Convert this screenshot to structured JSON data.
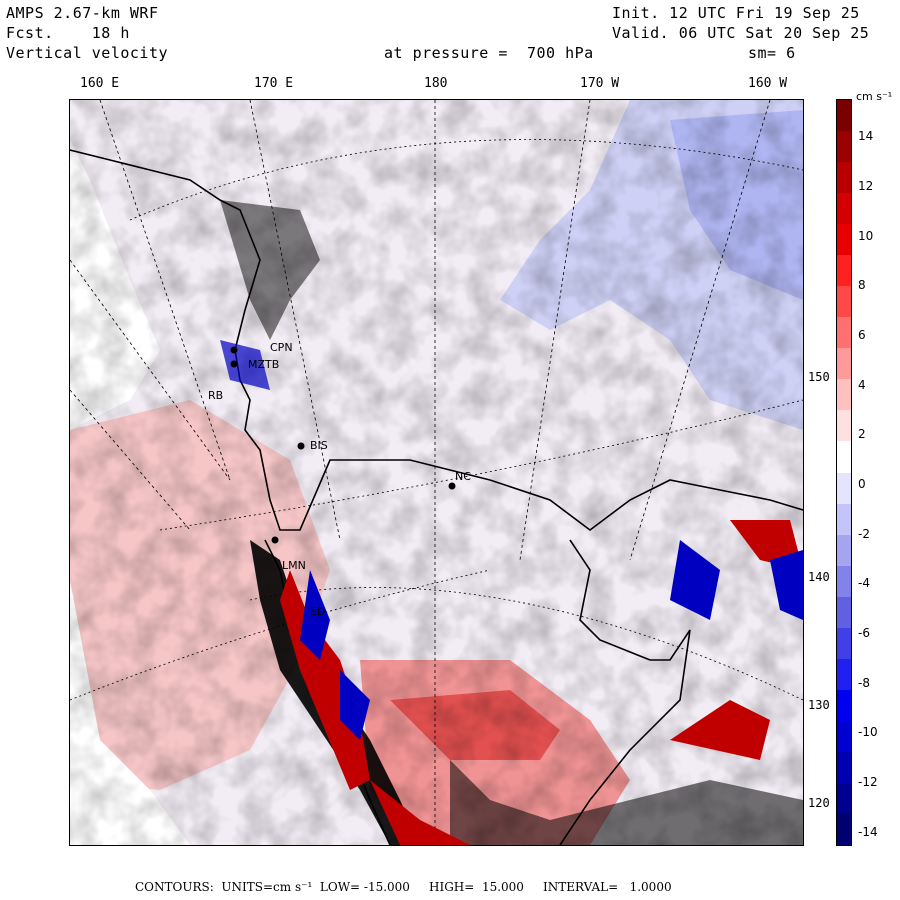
{
  "header": {
    "model": "AMPS 2.67-km WRF",
    "forecast": "Fcst.    18 h",
    "field": "Vertical velocity",
    "init": "Init. 12 UTC Fri 19 Sep 25",
    "valid": "Valid. 06 UTC Sat 20 Sep 25",
    "level": "at pressure =  700 hPa",
    "smoothing": "sm= 6"
  },
  "lon_labels": [
    "160 E",
    "170 E",
    "180",
    "170 W",
    "160 W"
  ],
  "lat_labels": [
    "150 W",
    "140 W",
    "130 W",
    "120 W"
  ],
  "colorbar": {
    "unit": "cm s⁻¹",
    "ticks": [
      "14",
      "12",
      "10",
      "8",
      "6",
      "4",
      "2",
      "0",
      "-2",
      "-4",
      "-6",
      "-8",
      "-10",
      "-12",
      "-14"
    ],
    "colors": [
      "#7a0000",
      "#9a0000",
      "#b80000",
      "#d40000",
      "#e80000",
      "#ff2020",
      "#ff4848",
      "#ff7070",
      "#ff9a9a",
      "#ffc0c0",
      "#ffe0e0",
      "#ffffff",
      "#e4e4ff",
      "#c4c4f8",
      "#a4a4f0",
      "#8282ea",
      "#6060e0",
      "#4040e6",
      "#2020f0",
      "#0000f0",
      "#0000d0",
      "#0000b0",
      "#000090",
      "#000070"
    ]
  },
  "stations": [
    {
      "name": "CPN"
    },
    {
      "name": "MZTB"
    },
    {
      "name": "BIS"
    },
    {
      "name": "NC"
    },
    {
      "name": "LMN"
    },
    {
      "name": "ED"
    },
    {
      "name": "RB"
    }
  ],
  "footer": {
    "text": "CONTOURS:  UNITS=cm s⁻¹  LOW= -15.000     HIGH=  15.000     INTERVAL=   1.0000"
  },
  "colors": {
    "positive": "#e84040",
    "negative": "#4050d8",
    "land_outline": "#000000"
  }
}
